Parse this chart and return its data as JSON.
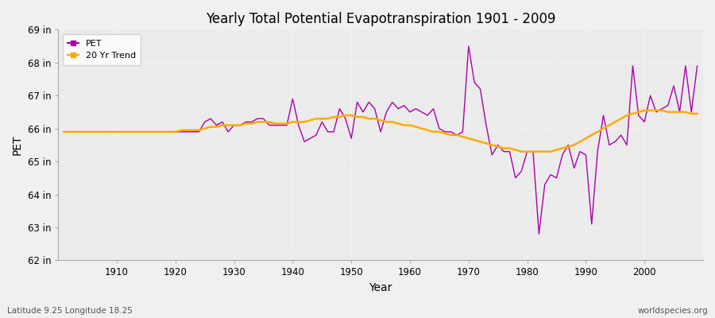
{
  "title": "Yearly Total Potential Evapotranspiration 1901 - 2009",
  "xlabel": "Year",
  "ylabel": "PET",
  "subtitle_left": "Latitude 9.25 Longitude 18.25",
  "subtitle_right": "worldspecies.org",
  "pet_color": "#aa00aa",
  "trend_color": "#ffaa00",
  "background_color": "#f0f0f0",
  "plot_bg_color": "#ebebeb",
  "ylim": [
    62,
    69
  ],
  "yticks": [
    62,
    63,
    64,
    65,
    66,
    67,
    68,
    69
  ],
  "ytick_labels": [
    "62 in",
    "63 in",
    "64 in",
    "65 in",
    "66 in",
    "67 in",
    "68 in",
    "69 in"
  ],
  "years": [
    1901,
    1902,
    1903,
    1904,
    1905,
    1906,
    1907,
    1908,
    1909,
    1910,
    1911,
    1912,
    1913,
    1914,
    1915,
    1916,
    1917,
    1918,
    1919,
    1920,
    1921,
    1922,
    1923,
    1924,
    1925,
    1926,
    1927,
    1928,
    1929,
    1930,
    1931,
    1932,
    1933,
    1934,
    1935,
    1936,
    1937,
    1938,
    1939,
    1940,
    1941,
    1942,
    1943,
    1944,
    1945,
    1946,
    1947,
    1948,
    1949,
    1950,
    1951,
    1952,
    1953,
    1954,
    1955,
    1956,
    1957,
    1958,
    1959,
    1960,
    1961,
    1962,
    1963,
    1964,
    1965,
    1966,
    1967,
    1968,
    1969,
    1970,
    1971,
    1972,
    1973,
    1974,
    1975,
    1976,
    1977,
    1978,
    1979,
    1980,
    1981,
    1982,
    1983,
    1984,
    1985,
    1986,
    1987,
    1988,
    1989,
    1990,
    1991,
    1992,
    1993,
    1994,
    1995,
    1996,
    1997,
    1998,
    1999,
    2000,
    2001,
    2002,
    2003,
    2004,
    2005,
    2006,
    2007,
    2008,
    2009
  ],
  "pet_values": [
    65.9,
    65.9,
    65.9,
    65.9,
    65.9,
    65.9,
    65.9,
    65.9,
    65.9,
    65.9,
    65.9,
    65.9,
    65.9,
    65.9,
    65.9,
    65.9,
    65.9,
    65.9,
    65.9,
    65.9,
    65.9,
    65.9,
    65.9,
    65.9,
    66.2,
    66.3,
    66.1,
    66.2,
    65.9,
    66.1,
    66.1,
    66.2,
    66.2,
    66.3,
    66.3,
    66.1,
    66.1,
    66.1,
    66.1,
    66.9,
    66.1,
    65.6,
    65.7,
    65.8,
    66.2,
    65.9,
    65.9,
    66.6,
    66.3,
    65.7,
    66.8,
    66.5,
    66.8,
    66.6,
    65.9,
    66.5,
    66.8,
    66.6,
    66.7,
    66.5,
    66.6,
    66.5,
    66.4,
    66.6,
    66.0,
    65.9,
    65.9,
    65.8,
    65.9,
    68.5,
    67.4,
    67.2,
    66.1,
    65.2,
    65.5,
    65.3,
    65.3,
    64.5,
    64.7,
    65.3,
    65.3,
    62.8,
    64.3,
    64.6,
    64.5,
    65.2,
    65.5,
    64.8,
    65.3,
    65.2,
    63.1,
    65.3,
    66.4,
    65.5,
    65.6,
    65.8,
    65.5,
    67.9,
    66.4,
    66.2,
    67.0,
    66.5,
    66.6,
    66.7,
    67.3,
    66.5,
    67.9,
    66.5,
    67.9
  ],
  "trend_values": [
    65.9,
    65.9,
    65.9,
    65.9,
    65.9,
    65.9,
    65.9,
    65.9,
    65.9,
    65.9,
    65.9,
    65.9,
    65.9,
    65.9,
    65.9,
    65.9,
    65.9,
    65.9,
    65.9,
    65.9,
    65.95,
    65.95,
    65.95,
    65.95,
    66.0,
    66.05,
    66.05,
    66.1,
    66.1,
    66.1,
    66.1,
    66.15,
    66.15,
    66.2,
    66.2,
    66.2,
    66.15,
    66.15,
    66.15,
    66.2,
    66.2,
    66.2,
    66.25,
    66.3,
    66.3,
    66.3,
    66.35,
    66.35,
    66.4,
    66.4,
    66.35,
    66.35,
    66.3,
    66.3,
    66.25,
    66.2,
    66.2,
    66.15,
    66.1,
    66.1,
    66.05,
    66.0,
    65.95,
    65.9,
    65.9,
    65.85,
    65.8,
    65.8,
    65.75,
    65.7,
    65.65,
    65.6,
    65.55,
    65.5,
    65.45,
    65.4,
    65.4,
    65.35,
    65.3,
    65.3,
    65.3,
    65.3,
    65.3,
    65.3,
    65.35,
    65.4,
    65.45,
    65.5,
    65.6,
    65.7,
    65.8,
    65.9,
    66.0,
    66.1,
    66.2,
    66.3,
    66.4,
    66.45,
    66.5,
    66.55,
    66.55,
    66.55,
    66.55,
    66.5,
    66.5,
    66.5,
    66.5,
    66.45,
    66.45
  ]
}
